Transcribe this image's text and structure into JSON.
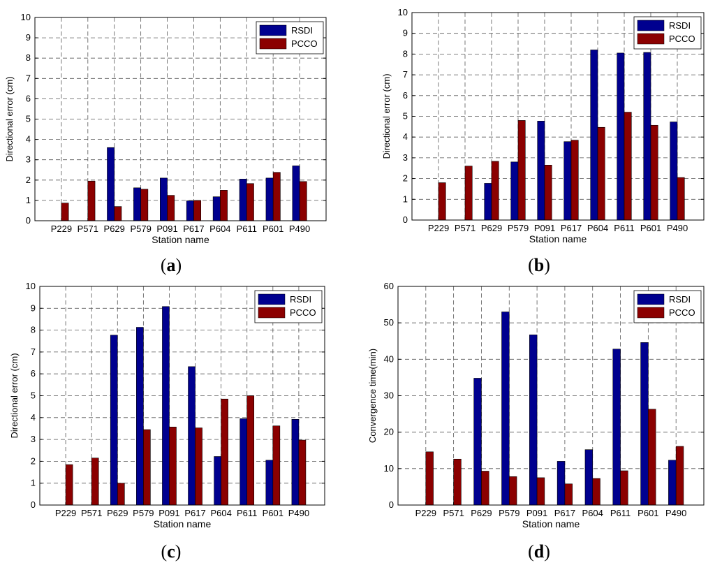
{
  "figure": {
    "panels": [
      {
        "label_open": "(",
        "label_letter": "a",
        "label_close": ")"
      },
      {
        "label_open": "(",
        "label_letter": "b",
        "label_close": ")"
      },
      {
        "label_open": "(",
        "label_letter": "c",
        "label_close": ")"
      },
      {
        "label_open": "(",
        "label_letter": "d",
        "label_close": ")"
      }
    ]
  },
  "colors": {
    "rsdi": "#00008F",
    "pcco": "#8B0000",
    "grid": "#555555",
    "axis": "#000000"
  },
  "chart_data": [
    {
      "type": "bar",
      "panel": "a",
      "categories": [
        "P229",
        "P571",
        "P629",
        "P579",
        "P091",
        "P617",
        "P604",
        "P611",
        "P601",
        "P490"
      ],
      "series": [
        {
          "name": "RSDI",
          "values": [
            0,
            0,
            3.6,
            1.62,
            2.1,
            0.98,
            1.18,
            2.05,
            2.1,
            2.7
          ]
        },
        {
          "name": "PCCO",
          "values": [
            0.87,
            1.95,
            0.7,
            1.55,
            1.25,
            1.0,
            1.5,
            1.83,
            2.38,
            1.93
          ]
        }
      ],
      "xlabel": "Station name",
      "ylabel": "Directional error (cm)",
      "ylim": [
        0,
        10
      ],
      "yticks": [
        0,
        1,
        2,
        3,
        4,
        5,
        6,
        7,
        8,
        9,
        10
      ],
      "grid": true,
      "legend": "top-right"
    },
    {
      "type": "bar",
      "panel": "b",
      "categories": [
        "P229",
        "P571",
        "P629",
        "P579",
        "P091",
        "P617",
        "P604",
        "P611",
        "P601",
        "P490"
      ],
      "series": [
        {
          "name": "RSDI",
          "values": [
            0,
            0,
            1.77,
            2.8,
            4.77,
            3.78,
            8.2,
            8.05,
            8.08,
            4.73
          ]
        },
        {
          "name": "PCCO",
          "values": [
            1.8,
            2.6,
            2.83,
            4.8,
            2.65,
            3.85,
            4.47,
            5.2,
            4.57,
            2.05
          ]
        }
      ],
      "xlabel": "Station name",
      "ylabel": "Directional error (cm)",
      "ylim": [
        0,
        10
      ],
      "yticks": [
        0,
        1,
        2,
        3,
        4,
        5,
        6,
        7,
        8,
        9,
        10
      ],
      "grid": true,
      "legend": "top-right"
    },
    {
      "type": "bar",
      "panel": "c",
      "categories": [
        "P229",
        "P571",
        "P629",
        "P579",
        "P091",
        "P617",
        "P604",
        "P611",
        "P601",
        "P490"
      ],
      "series": [
        {
          "name": "RSDI",
          "values": [
            0,
            0,
            7.77,
            8.13,
            9.08,
            6.33,
            2.22,
            3.95,
            2.05,
            3.92
          ]
        },
        {
          "name": "PCCO",
          "values": [
            1.85,
            2.15,
            1.0,
            3.45,
            3.57,
            3.53,
            4.85,
            5.0,
            3.62,
            2.97
          ]
        }
      ],
      "xlabel": "Station name",
      "ylabel": "Directional error (cm)",
      "ylim": [
        0,
        10
      ],
      "yticks": [
        0,
        1,
        2,
        3,
        4,
        5,
        6,
        7,
        8,
        9,
        10
      ],
      "grid": true,
      "legend": "top-right"
    },
    {
      "type": "bar",
      "panel": "d",
      "categories": [
        "P229",
        "P571",
        "P629",
        "P579",
        "P091",
        "P617",
        "P604",
        "P611",
        "P601",
        "P490"
      ],
      "series": [
        {
          "name": "RSDI",
          "values": [
            0,
            0,
            34.8,
            53.0,
            46.7,
            12.0,
            15.2,
            42.8,
            44.6,
            12.3
          ]
        },
        {
          "name": "PCCO",
          "values": [
            14.6,
            12.6,
            9.3,
            7.8,
            7.5,
            5.8,
            7.3,
            9.4,
            26.3,
            16.1
          ]
        }
      ],
      "xlabel": "Station name",
      "ylabel": "Convergence time(min)",
      "ylim": [
        0,
        60
      ],
      "yticks": [
        0,
        10,
        20,
        30,
        40,
        50,
        60
      ],
      "grid": true,
      "legend": "top-right"
    }
  ]
}
